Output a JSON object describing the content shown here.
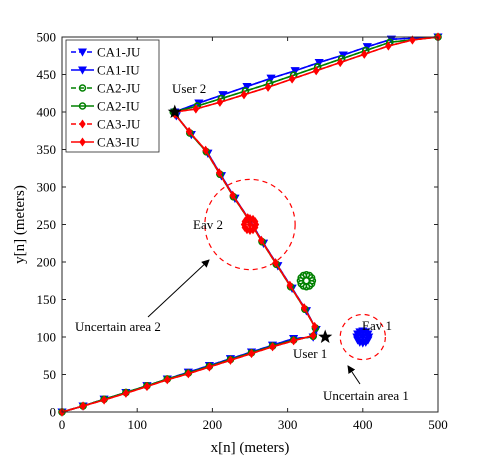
{
  "chart_data": {
    "type": "line",
    "title": "",
    "xlabel": "x[n] (meters)",
    "ylabel": "y[n] (meters)",
    "xlim": [
      0,
      500
    ],
    "ylim": [
      0,
      500
    ],
    "xticks": [
      0,
      100,
      200,
      300,
      400,
      500
    ],
    "yticks": [
      0,
      50,
      100,
      150,
      200,
      250,
      300,
      350,
      400,
      450,
      500
    ],
    "grid": false,
    "legend_position": "top-left",
    "points": [
      {
        "label": "User 1",
        "x": 350,
        "y": 100,
        "marker": "star"
      },
      {
        "label": "User 2",
        "x": 150,
        "y": 400,
        "marker": "star"
      }
    ],
    "annotations": [
      {
        "text": "Eav 1",
        "x": 400,
        "y": 100
      },
      {
        "text": "Eav 2",
        "x": 250,
        "y": 250
      },
      {
        "text": "Uncertain area 1",
        "circle_center": [
          400,
          100
        ],
        "circle_radius": 30
      },
      {
        "text": "Uncertain area 2",
        "circle_center": [
          250,
          250
        ],
        "circle_radius": 60
      }
    ],
    "eavesdropper_clusters": [
      {
        "series": "CA1",
        "color": "#0000FF",
        "x": 400,
        "y": 100
      },
      {
        "series": "CA2",
        "color": "#008000",
        "x": 325,
        "y": 175
      },
      {
        "series": "CA3",
        "color": "#FF0000",
        "x": 250,
        "y": 250
      }
    ],
    "series": [
      {
        "name": "CA1-JU",
        "color": "#0000FF",
        "dash": true,
        "marker": "triangle-down",
        "points": [
          [
            0,
            0
          ],
          [
            28,
            8
          ],
          [
            56,
            17
          ],
          [
            85,
            26
          ],
          [
            113,
            35
          ],
          [
            140,
            44
          ],
          [
            168,
            53
          ],
          [
            196,
            62
          ],
          [
            224,
            71
          ],
          [
            252,
            80
          ],
          [
            280,
            89
          ],
          [
            308,
            98
          ],
          [
            334,
            100
          ],
          [
            338,
            110
          ],
          [
            325,
            135
          ],
          [
            306,
            165
          ],
          [
            287,
            195
          ],
          [
            268,
            225
          ],
          [
            250,
            255
          ],
          [
            230,
            285
          ],
          [
            212,
            315
          ],
          [
            194,
            345
          ],
          [
            172,
            370
          ],
          [
            152,
            395
          ],
          [
            150,
            400
          ],
          [
            182,
            412
          ],
          [
            214,
            423
          ],
          [
            246,
            434
          ],
          [
            278,
            445
          ],
          [
            310,
            455
          ],
          [
            342,
            466
          ],
          [
            374,
            476
          ],
          [
            406,
            487
          ],
          [
            438,
            497
          ],
          [
            500,
            500
          ]
        ]
      },
      {
        "name": "CA1-IU",
        "color": "#0000FF",
        "dash": false,
        "marker": "triangle-down",
        "points": [
          [
            0,
            0
          ],
          [
            28,
            8
          ],
          [
            56,
            17
          ],
          [
            85,
            26
          ],
          [
            113,
            35
          ],
          [
            140,
            44
          ],
          [
            168,
            53
          ],
          [
            196,
            62
          ],
          [
            224,
            71
          ],
          [
            252,
            80
          ],
          [
            280,
            89
          ],
          [
            308,
            98
          ],
          [
            334,
            100
          ],
          [
            338,
            110
          ],
          [
            325,
            135
          ],
          [
            306,
            165
          ],
          [
            287,
            195
          ],
          [
            268,
            225
          ],
          [
            250,
            255
          ],
          [
            230,
            285
          ],
          [
            212,
            315
          ],
          [
            194,
            345
          ],
          [
            172,
            370
          ],
          [
            152,
            395
          ],
          [
            150,
            400
          ],
          [
            182,
            412
          ],
          [
            214,
            423
          ],
          [
            246,
            434
          ],
          [
            278,
            445
          ],
          [
            310,
            455
          ],
          [
            342,
            466
          ],
          [
            374,
            476
          ],
          [
            406,
            487
          ],
          [
            438,
            497
          ],
          [
            500,
            500
          ]
        ]
      },
      {
        "name": "CA2-JU",
        "color": "#008000",
        "dash": true,
        "marker": "circle",
        "points": [
          [
            0,
            0
          ],
          [
            28,
            8
          ],
          [
            56,
            17
          ],
          [
            85,
            26
          ],
          [
            113,
            35
          ],
          [
            140,
            44
          ],
          [
            168,
            52
          ],
          [
            196,
            61
          ],
          [
            224,
            70
          ],
          [
            252,
            79
          ],
          [
            280,
            88
          ],
          [
            308,
            96
          ],
          [
            334,
            101
          ],
          [
            337,
            112
          ],
          [
            323,
            137
          ],
          [
            304,
            167
          ],
          [
            285,
            197
          ],
          [
            266,
            227
          ],
          [
            248,
            257
          ],
          [
            228,
            287
          ],
          [
            210,
            317
          ],
          [
            192,
            347
          ],
          [
            170,
            372
          ],
          [
            150,
            398
          ],
          [
            148,
            400
          ],
          [
            180,
            408
          ],
          [
            212,
            418
          ],
          [
            244,
            428
          ],
          [
            276,
            438
          ],
          [
            308,
            449
          ],
          [
            340,
            460
          ],
          [
            372,
            471
          ],
          [
            404,
            482
          ],
          [
            436,
            493
          ],
          [
            500,
            500
          ]
        ]
      },
      {
        "name": "CA2-IU",
        "color": "#008000",
        "dash": false,
        "marker": "circle",
        "points": [
          [
            0,
            0
          ],
          [
            28,
            8
          ],
          [
            56,
            17
          ],
          [
            85,
            26
          ],
          [
            113,
            35
          ],
          [
            140,
            44
          ],
          [
            168,
            52
          ],
          [
            196,
            61
          ],
          [
            224,
            70
          ],
          [
            252,
            79
          ],
          [
            280,
            88
          ],
          [
            308,
            96
          ],
          [
            334,
            101
          ],
          [
            337,
            112
          ],
          [
            323,
            137
          ],
          [
            304,
            167
          ],
          [
            285,
            197
          ],
          [
            266,
            227
          ],
          [
            248,
            257
          ],
          [
            228,
            287
          ],
          [
            210,
            317
          ],
          [
            192,
            347
          ],
          [
            170,
            372
          ],
          [
            150,
            398
          ],
          [
            148,
            400
          ],
          [
            180,
            408
          ],
          [
            212,
            418
          ],
          [
            244,
            428
          ],
          [
            276,
            438
          ],
          [
            308,
            449
          ],
          [
            340,
            460
          ],
          [
            372,
            471
          ],
          [
            404,
            482
          ],
          [
            436,
            493
          ],
          [
            500,
            500
          ]
        ]
      },
      {
        "name": "CA3-JU",
        "color": "#FF0000",
        "dash": true,
        "marker": "diamond",
        "points": [
          [
            0,
            0
          ],
          [
            28,
            8
          ],
          [
            56,
            16
          ],
          [
            85,
            25
          ],
          [
            113,
            34
          ],
          [
            140,
            43
          ],
          [
            168,
            51
          ],
          [
            196,
            60
          ],
          [
            224,
            69
          ],
          [
            252,
            78
          ],
          [
            280,
            87
          ],
          [
            308,
            95
          ],
          [
            334,
            102
          ],
          [
            336,
            114
          ],
          [
            322,
            139
          ],
          [
            303,
            169
          ],
          [
            284,
            199
          ],
          [
            265,
            229
          ],
          [
            247,
            259
          ],
          [
            227,
            289
          ],
          [
            209,
            319
          ],
          [
            191,
            349
          ],
          [
            169,
            374
          ],
          [
            150,
            397
          ],
          [
            150,
            400
          ],
          [
            178,
            404
          ],
          [
            210,
            413
          ],
          [
            242,
            423
          ],
          [
            274,
            433
          ],
          [
            306,
            444
          ],
          [
            338,
            455
          ],
          [
            370,
            466
          ],
          [
            402,
            477
          ],
          [
            434,
            488
          ],
          [
            466,
            496
          ],
          [
            500,
            500
          ]
        ]
      },
      {
        "name": "CA3-IU",
        "color": "#FF0000",
        "dash": false,
        "marker": "diamond",
        "points": [
          [
            0,
            0
          ],
          [
            28,
            8
          ],
          [
            56,
            16
          ],
          [
            85,
            25
          ],
          [
            113,
            34
          ],
          [
            140,
            43
          ],
          [
            168,
            51
          ],
          [
            196,
            60
          ],
          [
            224,
            69
          ],
          [
            252,
            78
          ],
          [
            280,
            87
          ],
          [
            308,
            95
          ],
          [
            334,
            102
          ],
          [
            336,
            114
          ],
          [
            322,
            139
          ],
          [
            303,
            169
          ],
          [
            284,
            199
          ],
          [
            265,
            229
          ],
          [
            247,
            259
          ],
          [
            227,
            289
          ],
          [
            209,
            319
          ],
          [
            191,
            349
          ],
          [
            169,
            374
          ],
          [
            150,
            397
          ],
          [
            150,
            400
          ],
          [
            178,
            404
          ],
          [
            210,
            413
          ],
          [
            242,
            423
          ],
          [
            274,
            433
          ],
          [
            306,
            444
          ],
          [
            338,
            455
          ],
          [
            370,
            466
          ],
          [
            402,
            477
          ],
          [
            434,
            488
          ],
          [
            466,
            496
          ],
          [
            500,
            500
          ]
        ]
      }
    ]
  }
}
